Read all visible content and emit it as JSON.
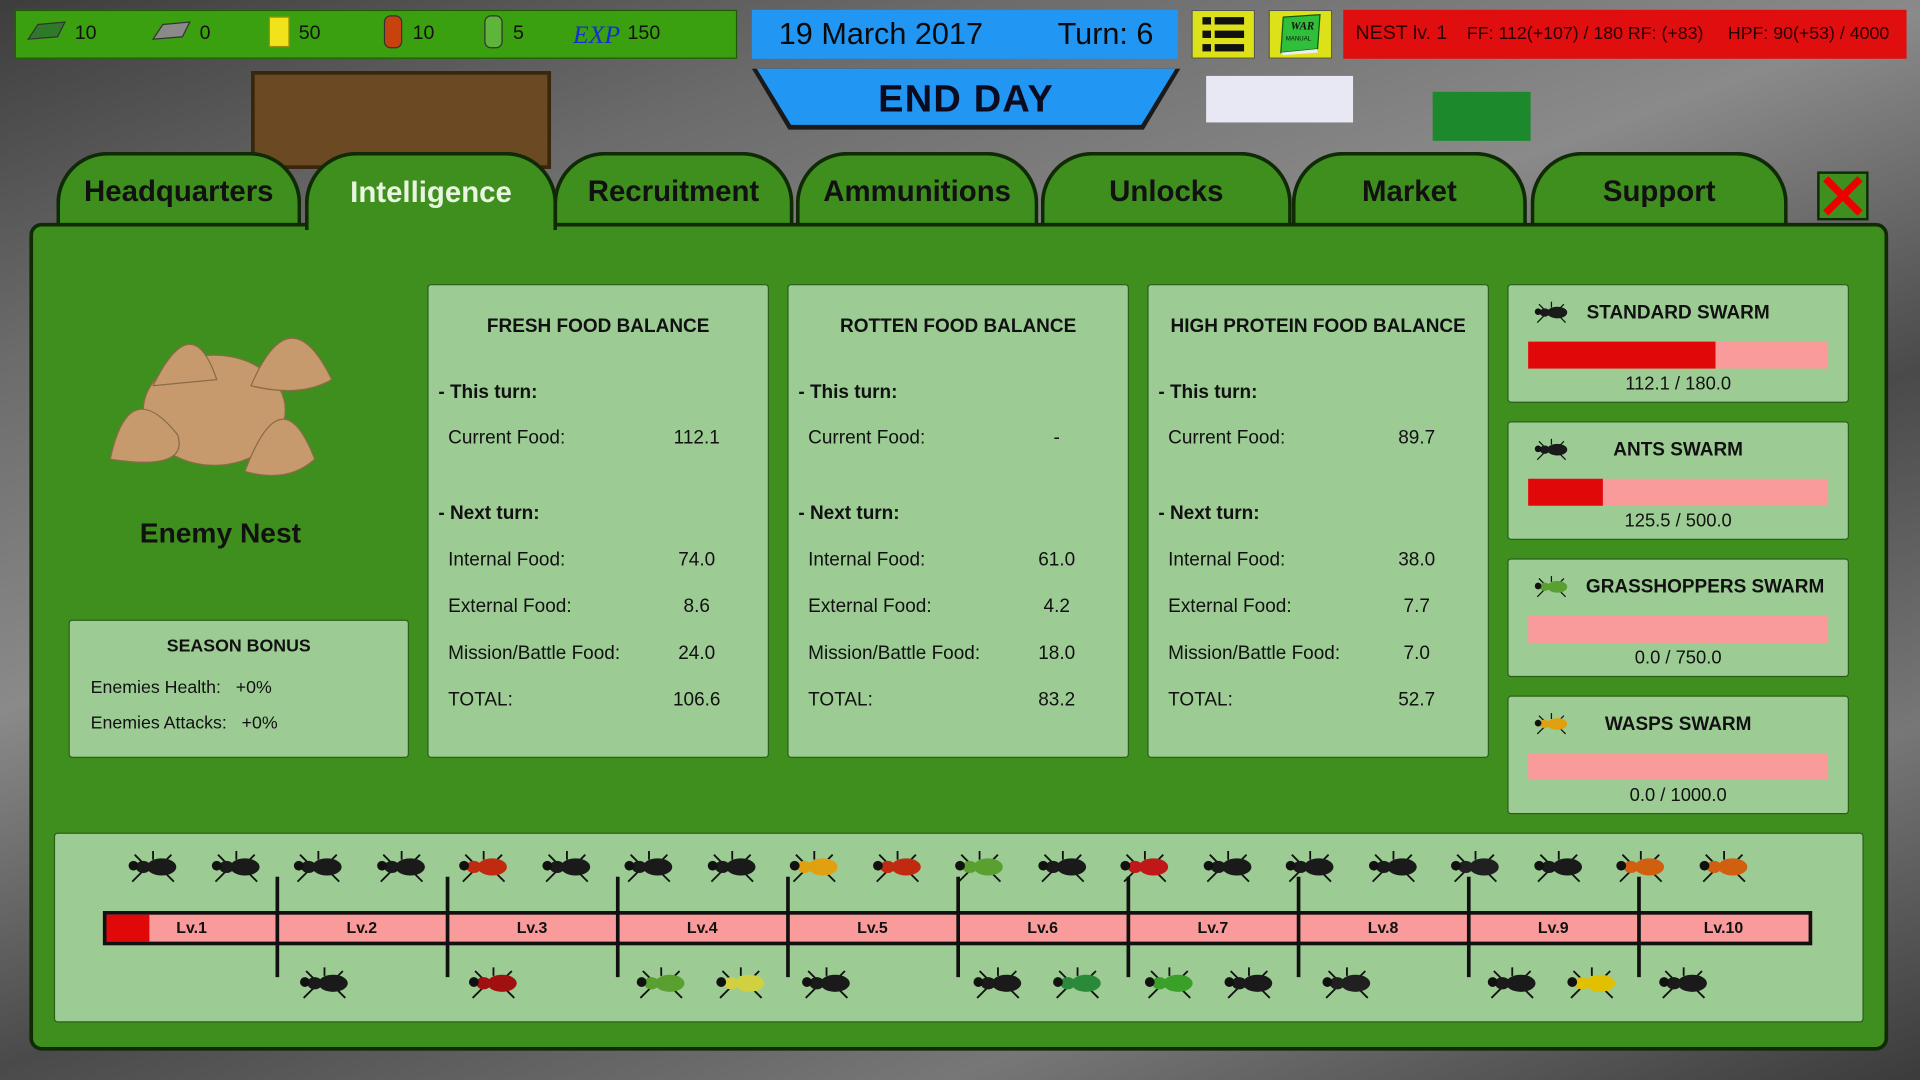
{
  "resources": [
    {
      "icon": "green-ingot-icon",
      "value": "10",
      "color": "#2f7a2a"
    },
    {
      "icon": "grey-ingot-icon",
      "value": "0",
      "color": "#8a8a8a"
    },
    {
      "icon": "yellow-block-icon",
      "value": "50",
      "color": "#f2e21a"
    },
    {
      "icon": "orange-barrel-icon",
      "value": "10",
      "color": "#c8420e"
    },
    {
      "icon": "green-barrel-icon",
      "value": "5",
      "color": "#5fb53a"
    }
  ],
  "exp": {
    "label": "EXP",
    "value": "150"
  },
  "date": "19 March 2017",
  "turn": "Turn: 6",
  "menu_icon": "list-menu-icon",
  "manual_icon": "war-manual-book-icon",
  "manual_text": "WAR MANUAL",
  "nest_status": {
    "level": "NEST lv. 1",
    "ff": "FF: 112(+107) / 180",
    "rf": "RF: (+83)",
    "hpf": "HPF: 90(+53) / 4000"
  },
  "end_day": "END  DAY",
  "tabs": [
    {
      "label": "Headquarters",
      "active": false
    },
    {
      "label": "Intelligence",
      "active": true
    },
    {
      "label": "Recruitment",
      "active": false
    },
    {
      "label": "Ammunitions",
      "active": false
    },
    {
      "label": "Unlocks",
      "active": false
    },
    {
      "label": "Market",
      "active": false
    },
    {
      "label": "Support",
      "active": false
    }
  ],
  "nest": {
    "name": "Enemy Nest"
  },
  "season_bonus": {
    "title": "SEASON BONUS",
    "rows": [
      {
        "label": "Enemies Health:",
        "value": "+0%"
      },
      {
        "label": "Enemies Attacks:",
        "value": "+0%"
      }
    ]
  },
  "food_balances": [
    {
      "title": "FRESH FOOD BALANCE",
      "this_turn": "- This turn:",
      "current_label": "Current Food:",
      "current": "112.1",
      "next_turn": "- Next turn:",
      "rows": [
        {
          "label": "Internal Food:",
          "value": "74.0"
        },
        {
          "label": "External Food:",
          "value": "8.6"
        },
        {
          "label": "Mission/Battle Food:",
          "value": "24.0"
        },
        {
          "label": "TOTAL:",
          "value": "106.6"
        }
      ]
    },
    {
      "title": "ROTTEN FOOD BALANCE",
      "this_turn": "- This turn:",
      "current_label": "Current Food:",
      "current": "-",
      "next_turn": "- Next turn:",
      "rows": [
        {
          "label": "Internal Food:",
          "value": "61.0"
        },
        {
          "label": "External Food:",
          "value": "4.2"
        },
        {
          "label": "Mission/Battle Food:",
          "value": "18.0"
        },
        {
          "label": "TOTAL:",
          "value": "83.2"
        }
      ]
    },
    {
      "title": "HIGH PROTEIN FOOD BALANCE",
      "this_turn": "- This turn:",
      "current_label": "Current Food:",
      "current": "89.7",
      "next_turn": "- Next turn:",
      "rows": [
        {
          "label": "Internal Food:",
          "value": "38.0"
        },
        {
          "label": "External Food:",
          "value": "7.7"
        },
        {
          "label": "Mission/Battle Food:",
          "value": "7.0"
        },
        {
          "label": "TOTAL:",
          "value": "52.7"
        }
      ]
    }
  ],
  "swarms": [
    {
      "name": "STANDARD SWARM",
      "icon": "cockroach-icon",
      "value": "112.1 / 180.0",
      "current": 112.1,
      "max": 180
    },
    {
      "name": "ANTS SWARM",
      "icon": "ant-icon",
      "value": "125.5 / 500.0",
      "current": 125.5,
      "max": 500
    },
    {
      "name": "GRASSHOPPERS SWARM",
      "icon": "grasshopper-icon",
      "value": "0.0 / 750.0",
      "current": 0,
      "max": 750
    },
    {
      "name": "WASPS SWARM",
      "icon": "wasp-icon",
      "value": "0.0 / 1000.0",
      "current": 0,
      "max": 1000
    }
  ],
  "levels": [
    "Lv.1",
    "Lv.2",
    "Lv.3",
    "Lv.4",
    "Lv.5",
    "Lv.6",
    "Lv.7",
    "Lv.8",
    "Lv.9",
    "Lv.10"
  ],
  "level_progress": 0.25,
  "colors": {
    "panel": "#3f8f1e",
    "box": "#9ccc94",
    "bar_fill": "#e00808",
    "bar_empty": "#f99b9b"
  },
  "bugs_top": [
    "ant",
    "mosquito",
    "cockroach",
    "mosquito",
    "red-ant",
    "fly",
    "beetle",
    "spider",
    "wasp",
    "red-ant",
    "grasshopper",
    "ant",
    "red-fly",
    "beetle",
    "spider",
    "cricket",
    "scorpion",
    "ant",
    "hornet",
    "hornet"
  ],
  "bugs_bottom": [
    "cricket",
    "red-spider",
    "grasshopper",
    "moth",
    "earwig",
    "fly",
    "green-beetle",
    "mantis",
    "spider",
    "scorpion",
    "tarantula",
    "firefly",
    "beetle"
  ]
}
